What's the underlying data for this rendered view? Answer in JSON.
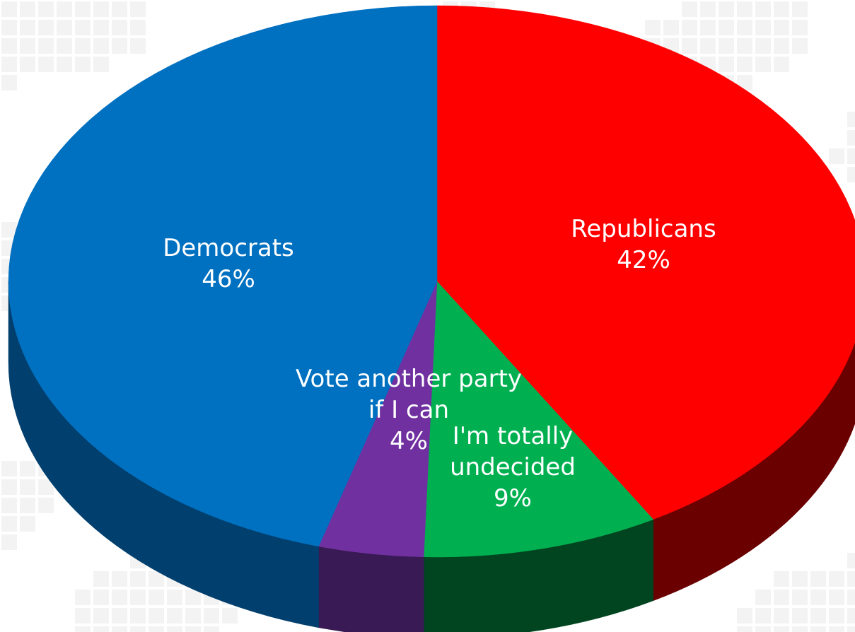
{
  "chart_data": {
    "type": "pie",
    "style": "3d-pie",
    "title": "",
    "slices": [
      {
        "label": "Republicans",
        "value": 42,
        "display": "42%",
        "color": "#ff0000",
        "side_color": "#6b0000"
      },
      {
        "label": "I'm totally undecided",
        "value": 9,
        "display": "9%",
        "color": "#00b050",
        "side_color": "#00451f"
      },
      {
        "label": "Vote another party if I can",
        "value": 4,
        "display": "4%",
        "color": "#7030a0",
        "side_color": "#3a1a55"
      },
      {
        "label": "Democrats",
        "value": 46,
        "display": "46%",
        "color": "#0070c0",
        "side_color": "#003f6e"
      }
    ],
    "start_angle_deg": -90,
    "direction": "clockwise",
    "legend": "none",
    "data_labels": "category-and-percent"
  },
  "background": {
    "tile_color_a": "#f3f3f3",
    "tile_color_b": "#ffffff"
  }
}
